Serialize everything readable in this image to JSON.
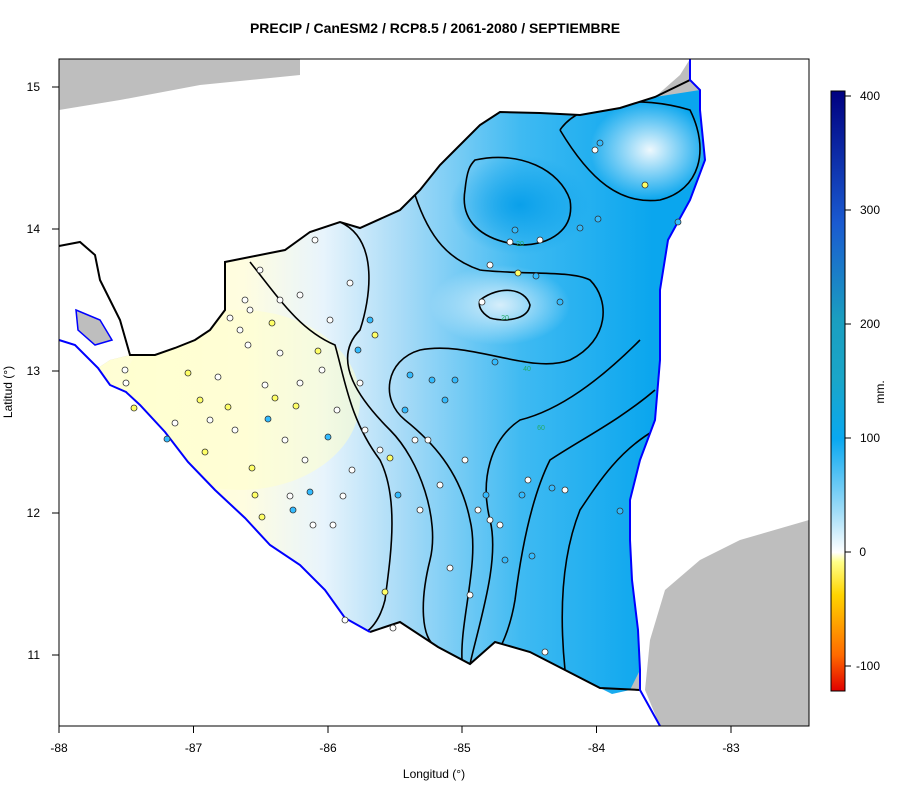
{
  "title": "PRECIP / CanESM2 / RCP8.5 / 2061-2080 / SEPTIEMBRE",
  "xlabel": "Longitud (°)",
  "ylabel": "Latitud (°)",
  "x_ticks": [
    "-88",
    "-87",
    "-86",
    "-85",
    "-84",
    "-83"
  ],
  "y_ticks": [
    "11",
    "12",
    "13",
    "14",
    "15"
  ],
  "colorbar": {
    "label": "mm.",
    "ticks": [
      "-100",
      "0",
      "100",
      "200",
      "300",
      "400"
    ],
    "range": [
      -120,
      400
    ],
    "colors": {
      "-120": "#e00000",
      "-50": "#ffa500",
      "-10": "#ffff66",
      "0": "#ffffff",
      "60": "#33bbee",
      "130": "#0095e8",
      "200": "#1aa0bf",
      "300": "#1a5ac0",
      "400": "#000080"
    }
  },
  "contour_labels": [
    "20",
    "40",
    "60",
    "20"
  ],
  "colors": {
    "land_outside": "#bebebe",
    "coast": "#0000ff",
    "border": "#000000",
    "wet_max": "#0aaaf0",
    "dry": "#ffffcc"
  }
}
